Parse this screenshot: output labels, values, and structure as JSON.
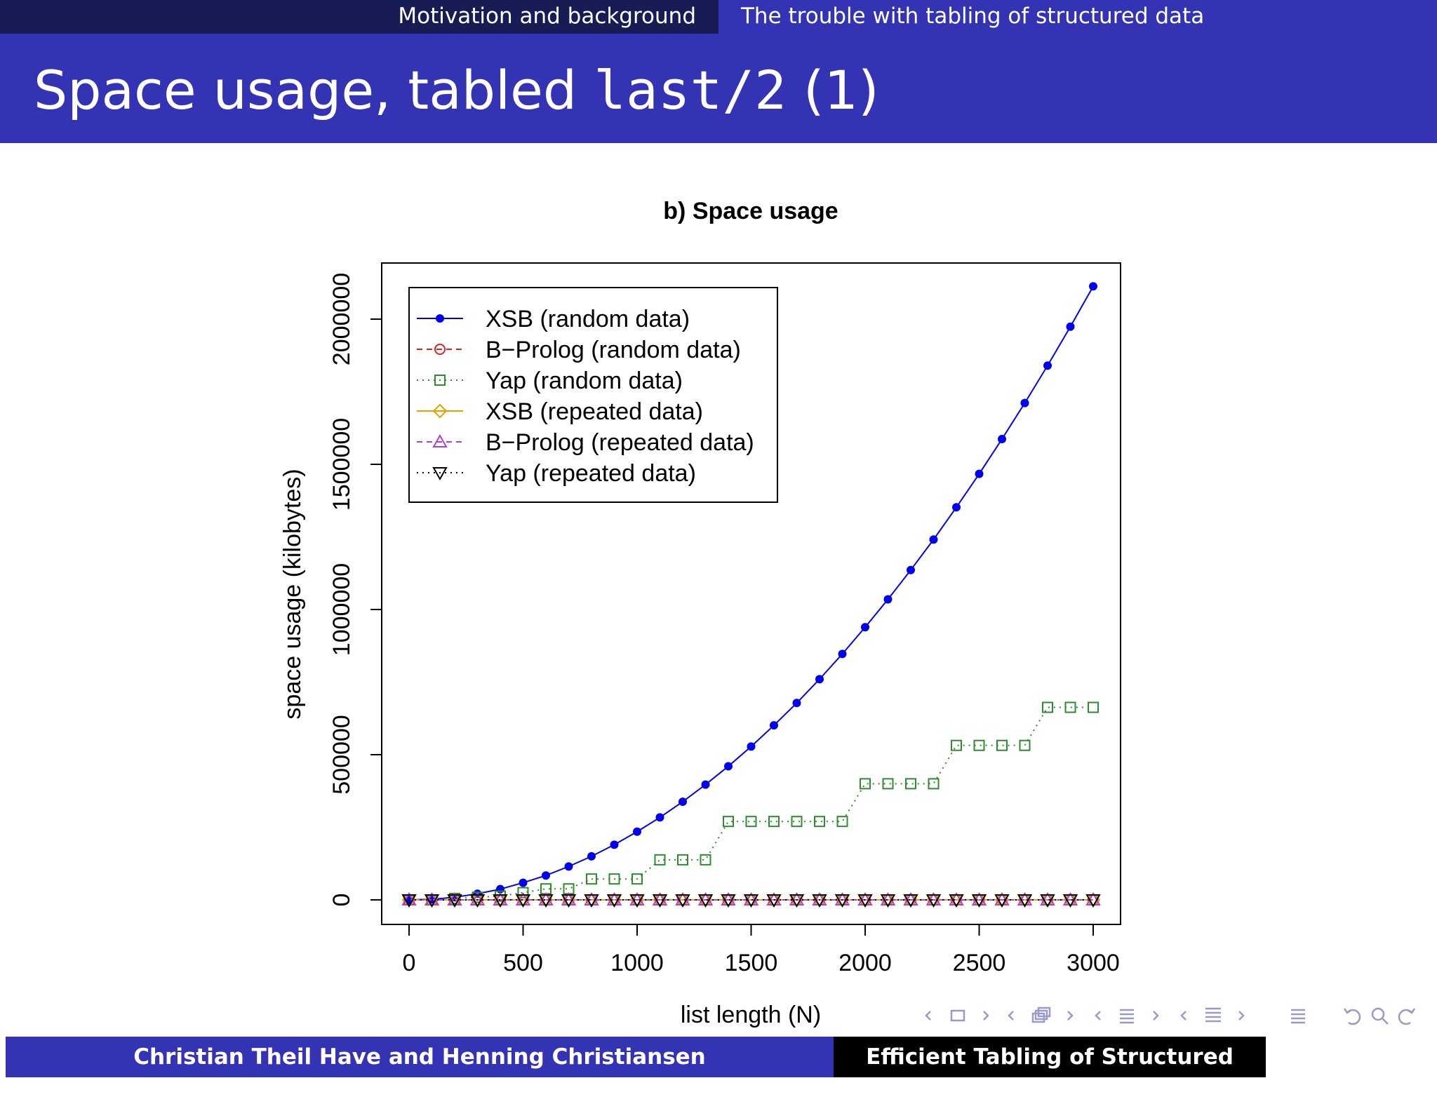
{
  "header": {
    "section_left": "Motivation and background",
    "section_right": "The trouble with tabling of structured data"
  },
  "slide": {
    "title_prefix": "Space usage, tabled ",
    "title_code": "last/2",
    "title_suffix": " (1)"
  },
  "footer": {
    "authors": "Christian Theil Have and Henning Christiansen",
    "talk_title": "Efficient Tabling of Structured Data"
  },
  "chart_data": {
    "type": "line",
    "title": "b) Space usage",
    "xlabel": "list length (N)",
    "ylabel": "space usage (kilobytes)",
    "xlim": [
      0,
      3000
    ],
    "ylim": [
      0,
      2000000
    ],
    "xticks": [
      0,
      500,
      1000,
      1500,
      2000,
      2500,
      3000
    ],
    "yticks": [
      0,
      500000,
      1000000,
      1500000,
      2000000
    ],
    "grid": false,
    "legend_position": "top-left",
    "x": [
      0,
      100,
      200,
      300,
      400,
      500,
      600,
      700,
      800,
      900,
      1000,
      1100,
      1200,
      1300,
      1400,
      1500,
      1600,
      1700,
      1800,
      1900,
      2000,
      2100,
      2200,
      2300,
      2400,
      2500,
      2600,
      2700,
      2800,
      2900,
      3000
    ],
    "series": [
      {
        "name": "XSB (random data)",
        "color": "#0000ee",
        "marker": "filled-circle",
        "line": "solid",
        "values": [
          0,
          2000,
          9000,
          21000,
          37000,
          59000,
          84000,
          115000,
          150000,
          190000,
          235000,
          284000,
          338000,
          397000,
          460000,
          528000,
          601000,
          678000,
          760000,
          847000,
          939000,
          1035000,
          1136000,
          1241000,
          1352000,
          1467000,
          1587000,
          1711000,
          1840000,
          1974000,
          2113000
        ]
      },
      {
        "name": "B−Prolog (random data)",
        "color": "#e0201b",
        "marker": "open-circle",
        "line": "dashed",
        "values": [
          0,
          0,
          0,
          0,
          0,
          0,
          0,
          0,
          0,
          0,
          0,
          0,
          0,
          0,
          0,
          0,
          0,
          0,
          0,
          0,
          0,
          0,
          0,
          0,
          0,
          0,
          0,
          0,
          0,
          0,
          0
        ]
      },
      {
        "name": "Yap (random data)",
        "color": "#2e8b2e",
        "marker": "open-square",
        "line": "dotted",
        "values": [
          0,
          0,
          5000,
          9000,
          13000,
          25000,
          38000,
          38000,
          72000,
          72000,
          72000,
          138000,
          138000,
          138000,
          270000,
          270000,
          270000,
          270000,
          270000,
          270000,
          400000,
          400000,
          400000,
          400000,
          532000,
          532000,
          532000,
          532000,
          663000,
          663000,
          663000
        ]
      },
      {
        "name": "XSB (repeated data)",
        "color": "#e6a000",
        "marker": "open-diamond",
        "line": "solid",
        "values": [
          0,
          0,
          0,
          0,
          0,
          0,
          0,
          0,
          0,
          0,
          0,
          0,
          0,
          0,
          0,
          0,
          0,
          0,
          0,
          0,
          0,
          0,
          0,
          0,
          0,
          0,
          0,
          0,
          0,
          0,
          0
        ]
      },
      {
        "name": "B−Prolog (repeated data)",
        "color": "#b040cc",
        "marker": "open-triangle-up",
        "line": "dashed",
        "values": [
          0,
          0,
          0,
          0,
          0,
          0,
          0,
          0,
          0,
          0,
          0,
          0,
          0,
          0,
          0,
          0,
          0,
          0,
          0,
          0,
          0,
          0,
          0,
          0,
          0,
          0,
          0,
          0,
          0,
          0,
          0
        ]
      },
      {
        "name": "Yap (repeated data)",
        "color": "#000000",
        "marker": "open-triangle-down",
        "line": "dotted",
        "values": [
          0,
          0,
          0,
          0,
          0,
          0,
          0,
          0,
          0,
          0,
          0,
          0,
          0,
          0,
          0,
          0,
          0,
          0,
          0,
          0,
          0,
          0,
          0,
          0,
          0,
          0,
          0,
          0,
          0,
          0,
          0
        ]
      }
    ]
  }
}
